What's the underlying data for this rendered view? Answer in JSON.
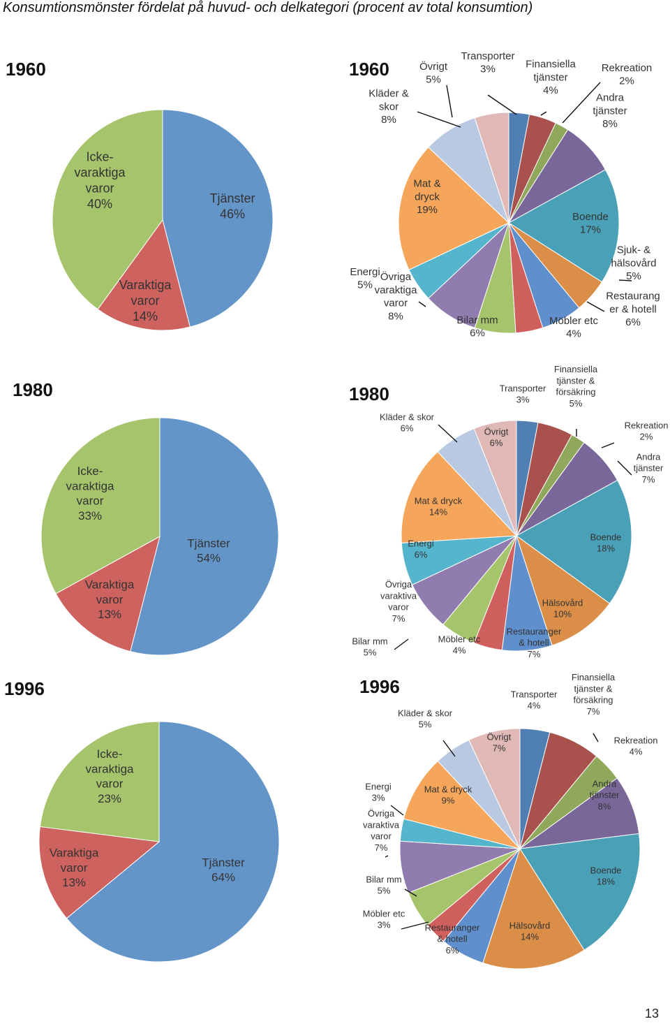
{
  "page": {
    "title": "Konsumtionsmönster fördelat på huvud- och delkategori (procent av total konsumtion)",
    "page_number": "13"
  },
  "colors": {
    "tjanster": "#6495c9",
    "varaktiga": "#cd625e",
    "ickevaraktiga": "#a6c46c",
    "transporter": "#4f7fb3",
    "finansiella": "#a9514d",
    "rekreation": "#8fa85c",
    "andra": "#7a679a",
    "boende": "#4aa0b6",
    "sjukvard": "#da8e47",
    "restaurang": "#5f8fcc",
    "mobler": "#d0605d",
    "bilar": "#a6c46c",
    "ovriga_varaktiga": "#917cb0",
    "energi": "#55b5cc",
    "mat": "#f5a65a",
    "klader": "#b9c9e2",
    "ovrigt": "#e0b8b6"
  },
  "chart_data": [
    {
      "type": "pie",
      "title": "1960",
      "chart": "main-1960",
      "slices": [
        {
          "name": "Tjänster",
          "label": "Tjänster\n46%",
          "value": 46,
          "color": "tjanster"
        },
        {
          "name": "Varaktiga varor",
          "label": "Varaktiga\nvaror\n14%",
          "value": 14,
          "color": "varaktiga"
        },
        {
          "name": "Icke-varaktiga varor",
          "label": "Icke-\nvaraktiga\nvaror\n40%",
          "value": 40,
          "color": "ickevaraktiga"
        }
      ]
    },
    {
      "type": "pie",
      "title": "1960",
      "chart": "sub-1960",
      "slices": [
        {
          "name": "Transporter",
          "label": "Transporter\n3%",
          "value": 3,
          "color": "transporter"
        },
        {
          "name": "Finansiella tjänster",
          "label": "Finansiella\ntjänster\n4%",
          "value": 4,
          "color": "finansiella"
        },
        {
          "name": "Rekreation",
          "label": "Rekreation\n2%",
          "value": 2,
          "color": "rekreation"
        },
        {
          "name": "Andra tjänster",
          "label": "Andra\ntjänster\n8%",
          "value": 8,
          "color": "andra"
        },
        {
          "name": "Boende",
          "label": "Boende\n17%",
          "value": 17,
          "color": "boende"
        },
        {
          "name": "Sjuk- & hälsovård",
          "label": "Sjuk- &\nhälsovård\n5%",
          "value": 5,
          "color": "sjukvard"
        },
        {
          "name": "Restaurang er & hotell",
          "label": "Restaurang\ner & hotell\n6%",
          "value": 6,
          "color": "restaurang"
        },
        {
          "name": "Möbler etc",
          "label": "Möbler etc\n4%",
          "value": 4,
          "color": "mobler"
        },
        {
          "name": "Bilar mm",
          "label": "Bilar mm\n6%",
          "value": 6,
          "color": "bilar"
        },
        {
          "name": "Övriga varaktiga varor",
          "label": "Övriga\nvaraktiga\nvaror\n8%",
          "value": 8,
          "color": "ovriga_varaktiga"
        },
        {
          "name": "Energi",
          "label": "Energi\n5%",
          "value": 5,
          "color": "energi"
        },
        {
          "name": "Mat & dryck",
          "label": "Mat &\ndryck\n19%",
          "value": 19,
          "color": "mat"
        },
        {
          "name": "Kläder & skor",
          "label": "Kläder &\nskor\n8%",
          "value": 8,
          "color": "klader"
        },
        {
          "name": "Övrigt",
          "label": "Övrigt\n5%",
          "value": 5,
          "color": "ovrigt"
        }
      ]
    },
    {
      "type": "pie",
      "title": "1980",
      "chart": "main-1980",
      "slices": [
        {
          "name": "Tjänster",
          "label": "Tjänster\n54%",
          "value": 54,
          "color": "tjanster"
        },
        {
          "name": "Varaktiga varor",
          "label": "Varaktiga\nvaror\n13%",
          "value": 13,
          "color": "varaktiga"
        },
        {
          "name": "Icke-varaktiga varor",
          "label": "Icke-\nvaraktiga\nvaror\n33%",
          "value": 33,
          "color": "ickevaraktiga"
        }
      ]
    },
    {
      "type": "pie",
      "title": "1980",
      "chart": "sub-1980",
      "slices": [
        {
          "name": "Transporter",
          "label": "Transporter\n3%",
          "value": 3,
          "color": "transporter"
        },
        {
          "name": "Finansiella tjänster & försäkring",
          "label": "Finansiella\ntjänster &\nförsäkring\n5%",
          "value": 5,
          "color": "finansiella"
        },
        {
          "name": "Rekreation",
          "label": "Rekreation\n2%",
          "value": 2,
          "color": "rekreation"
        },
        {
          "name": "Andra tjänster",
          "label": "Andra\ntjänster\n7%",
          "value": 7,
          "color": "andra"
        },
        {
          "name": "Boende",
          "label": "Boende\n18%",
          "value": 18,
          "color": "boende"
        },
        {
          "name": "Hälsovård",
          "label": "Hälsovård\n10%",
          "value": 10,
          "color": "sjukvard"
        },
        {
          "name": "Restauranger & hotell",
          "label": "Restauranger\n& hotell\n7%",
          "value": 7,
          "color": "restaurang"
        },
        {
          "name": "Möbler etc",
          "label": "Möbler etc\n4%",
          "value": 4,
          "color": "mobler"
        },
        {
          "name": "Bilar mm",
          "label": "Bilar mm\n5%",
          "value": 5,
          "color": "bilar"
        },
        {
          "name": "Övriga varaktiva varor",
          "label": "Övriga\nvaraktiva\nvaror\n7%",
          "value": 7,
          "color": "ovriga_varaktiga"
        },
        {
          "name": "Energi",
          "label": "Energi\n6%",
          "value": 6,
          "color": "energi"
        },
        {
          "name": "Mat & dryck",
          "label": "Mat & dryck\n14%",
          "value": 14,
          "color": "mat"
        },
        {
          "name": "Kläder & skor",
          "label": "Kläder & skor\n6%",
          "value": 6,
          "color": "klader"
        },
        {
          "name": "Övrigt",
          "label": "Övrigt\n6%",
          "value": 6,
          "color": "ovrigt"
        }
      ]
    },
    {
      "type": "pie",
      "title": "1996",
      "chart": "main-1996",
      "slices": [
        {
          "name": "Tjänster",
          "label": "Tjänster\n64%",
          "value": 64,
          "color": "tjanster"
        },
        {
          "name": "Varaktiga varor",
          "label": "Varaktiga\nvaror\n13%",
          "value": 13,
          "color": "varaktiga"
        },
        {
          "name": "Icke-varaktiga varor",
          "label": "Icke-\nvaraktiga\nvaror\n23%",
          "value": 23,
          "color": "ickevaraktiga"
        }
      ]
    },
    {
      "type": "pie",
      "title": "1996",
      "chart": "sub-1996",
      "slices": [
        {
          "name": "Transporter",
          "label": "Transporter\n4%",
          "value": 4,
          "color": "transporter"
        },
        {
          "name": "Finansiella tjänster & försäkring",
          "label": "Finansiella\ntjänster &\nförsäkring\n7%",
          "value": 7,
          "color": "finansiella"
        },
        {
          "name": "Rekreation",
          "label": "Rekreation\n4%",
          "value": 4,
          "color": "rekreation"
        },
        {
          "name": "Andra tjänster",
          "label": "Andra\ntjänster\n8%",
          "value": 8,
          "color": "andra"
        },
        {
          "name": "Boende",
          "label": "Boende\n18%",
          "value": 18,
          "color": "boende"
        },
        {
          "name": "Hälsovård",
          "label": "Hälsovård\n14%",
          "value": 14,
          "color": "sjukvard"
        },
        {
          "name": "Restauranger & hotell",
          "label": "Restauranger\n& hotell\n6%",
          "value": 6,
          "color": "restaurang"
        },
        {
          "name": "Möbler etc",
          "label": "Möbler etc\n3%",
          "value": 3,
          "color": "mobler"
        },
        {
          "name": "Bilar mm",
          "label": "Bilar mm\n5%",
          "value": 5,
          "color": "bilar"
        },
        {
          "name": "Övriga varaktiva varor",
          "label": "Övriga\nvaraktiva\nvaror\n7%",
          "value": 7,
          "color": "ovriga_varaktiga"
        },
        {
          "name": "Energi",
          "label": "Energi\n3%",
          "value": 3,
          "color": "energi"
        },
        {
          "name": "Mat & dryck",
          "label": "Mat & dryck\n9%",
          "value": 9,
          "color": "mat"
        },
        {
          "name": "Kläder & skor",
          "label": "Kläder & skor\n5%",
          "value": 5,
          "color": "klader"
        },
        {
          "name": "Övrigt",
          "label": "Övrigt\n7%",
          "value": 7,
          "color": "ovrigt"
        }
      ]
    }
  ]
}
